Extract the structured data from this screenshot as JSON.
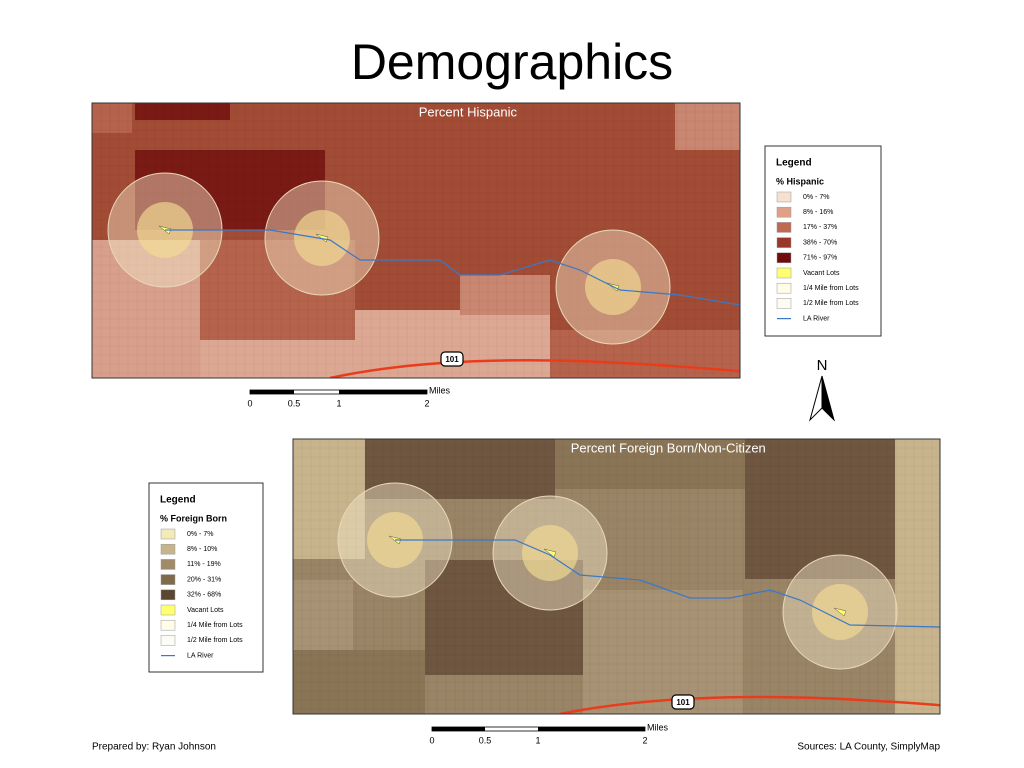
{
  "title": "Demographics",
  "maps": [
    {
      "title": "Percent Hispanic",
      "highway": "101",
      "legend": {
        "heading": "Legend",
        "subtitle": "% Hispanic",
        "items": [
          "0% - 7%",
          "8% - 16%",
          "17% - 37%",
          "38% - 70%",
          "71% - 97%",
          "Vacant Lots",
          "1/4 Mile from Lots",
          "1/2 Mile from Lots",
          "LA River"
        ]
      },
      "scale": {
        "unit": "Miles",
        "labels": [
          "0",
          "0.5",
          "1",
          "2"
        ]
      }
    },
    {
      "title": "Percent Foreign Born/Non-Citizen",
      "highway": "101",
      "legend": {
        "heading": "Legend",
        "subtitle": "% Foreign Born",
        "items": [
          "0% - 7%",
          "8% - 10%",
          "11% - 19%",
          "20% - 31%",
          "32% - 68%",
          "Vacant Lots",
          "1/4 Mile from Lots",
          "1/2 Mile from Lots",
          "LA River"
        ]
      },
      "scale": {
        "unit": "Miles",
        "labels": [
          "0",
          "0.5",
          "1",
          "2"
        ]
      }
    }
  ],
  "north": "N",
  "footer": {
    "left": "Prepared by: Ryan Johnson",
    "right": "Sources: LA County, SimplyMap"
  }
}
